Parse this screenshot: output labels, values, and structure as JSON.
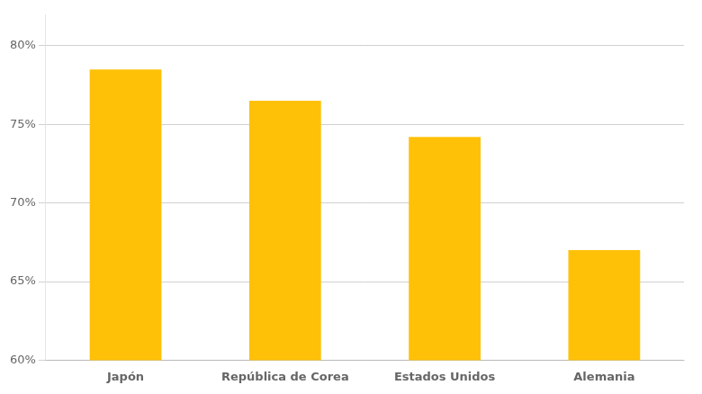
{
  "chart_data": {
    "type": "bar",
    "categories": [
      "Japón",
      "República de Corea",
      "Estados Unidos",
      "Alemania"
    ],
    "values": [
      78.5,
      76.5,
      74.2,
      67.0
    ],
    "color": "#FFC107",
    "ylim": [
      60,
      82
    ],
    "yticks": [
      {
        "value": 60,
        "label": "60%"
      },
      {
        "value": 65,
        "label": "65%"
      },
      {
        "value": 70,
        "label": "70%"
      },
      {
        "value": 75,
        "label": "75%"
      },
      {
        "value": 80,
        "label": "80%"
      }
    ],
    "grid": true
  }
}
